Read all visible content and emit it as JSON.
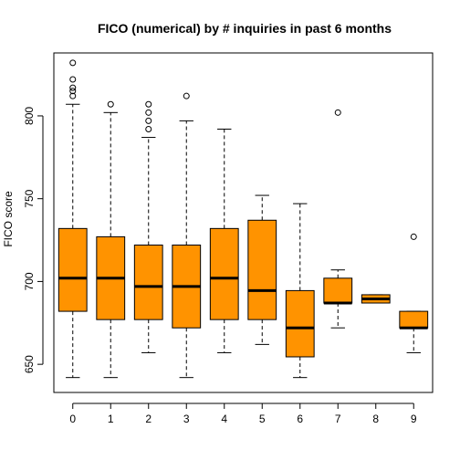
{
  "chart_data": {
    "type": "boxplot",
    "title": "FICO (numerical) by # inquiries in past 6 months",
    "xlabel": "",
    "ylabel": "FICO score",
    "categories": [
      "0",
      "1",
      "2",
      "3",
      "4",
      "5",
      "6",
      "7",
      "8",
      "9"
    ],
    "y_ticks": [
      "650",
      "700",
      "750",
      "800"
    ],
    "ylim": [
      633,
      838
    ],
    "box_color": "#FF9300",
    "boxes": [
      {
        "category": "0",
        "whisker_low": 642,
        "q1": 682,
        "median": 702,
        "q3": 732,
        "whisker_high": 807,
        "outliers": [
          812,
          815,
          817,
          822,
          832
        ]
      },
      {
        "category": "1",
        "whisker_low": 642,
        "q1": 677,
        "median": 702,
        "q3": 727,
        "whisker_high": 802,
        "outliers": [
          807
        ]
      },
      {
        "category": "2",
        "whisker_low": 657,
        "q1": 677,
        "median": 697,
        "q3": 722,
        "whisker_high": 787,
        "outliers": [
          792,
          797,
          802,
          807
        ]
      },
      {
        "category": "3",
        "whisker_low": 642,
        "q1": 672,
        "median": 697,
        "q3": 722,
        "whisker_high": 797,
        "outliers": [
          812
        ]
      },
      {
        "category": "4",
        "whisker_low": 657,
        "q1": 677,
        "median": 702,
        "q3": 732,
        "whisker_high": 792,
        "outliers": []
      },
      {
        "category": "5",
        "whisker_low": 662,
        "q1": 677,
        "median": 694.5,
        "q3": 737,
        "whisker_high": 752,
        "outliers": []
      },
      {
        "category": "6",
        "whisker_low": 642,
        "q1": 654.5,
        "median": 672,
        "q3": 694.5,
        "whisker_high": 747,
        "outliers": []
      },
      {
        "category": "7",
        "whisker_low": 672,
        "q1": 687,
        "median": 687,
        "q3": 702,
        "whisker_high": 707,
        "outliers": [
          802
        ]
      },
      {
        "category": "8",
        "whisker_low": 687,
        "q1": 687,
        "median": 689.5,
        "q3": 692,
        "whisker_high": 692,
        "outliers": []
      },
      {
        "category": "9",
        "whisker_low": 657,
        "q1": 672,
        "median": 672,
        "q3": 682,
        "whisker_high": 682,
        "outliers": [
          727
        ]
      }
    ]
  }
}
